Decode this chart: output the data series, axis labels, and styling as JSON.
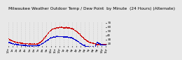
{
  "title": "Milwaukee Weather Outdoor Temp / Dew Point  by Minute  (24 Hours) (Alternate)",
  "bg_color": "#e8e8e8",
  "plot_bg_color": "#e8e8e8",
  "grid_color": "#aaaaaa",
  "temp_color": "#cc0000",
  "dew_color": "#0000cc",
  "ylim": [
    14,
    72
  ],
  "yticks": [
    20,
    30,
    40,
    50,
    60,
    70
  ],
  "ytick_labels": [
    "20",
    "30",
    "40",
    "50",
    "60",
    "70"
  ],
  "temp_values": [
    30,
    29,
    28,
    27,
    27,
    26,
    25,
    25,
    24,
    24,
    23,
    23,
    22,
    22,
    22,
    21,
    21,
    21,
    20,
    20,
    20,
    20,
    19,
    19,
    19,
    19,
    19,
    19,
    19,
    18,
    18,
    18,
    18,
    18,
    18,
    18,
    18,
    18,
    18,
    18,
    18,
    19,
    19,
    20,
    20,
    21,
    22,
    23,
    24,
    26,
    28,
    30,
    32,
    34,
    36,
    38,
    40,
    42,
    44,
    46,
    48,
    50,
    51,
    52,
    53,
    54,
    55,
    55,
    56,
    56,
    57,
    57,
    57,
    57,
    58,
    58,
    58,
    58,
    58,
    58,
    57,
    57,
    57,
    57,
    57,
    57,
    57,
    57,
    57,
    56,
    56,
    56,
    55,
    55,
    54,
    53,
    52,
    51,
    50,
    49,
    48,
    46,
    45,
    43,
    42,
    40,
    38,
    37,
    35,
    34,
    32,
    30,
    29,
    28,
    27,
    26,
    25,
    24,
    23,
    22,
    22,
    21,
    21,
    20,
    20,
    19,
    19,
    19,
    18,
    18,
    18,
    17,
    17,
    17,
    17,
    17,
    17,
    17,
    17,
    17,
    17,
    17,
    17,
    17
  ],
  "dew_values": [
    22,
    21,
    21,
    20,
    20,
    19,
    19,
    19,
    18,
    18,
    18,
    17,
    17,
    17,
    17,
    16,
    16,
    16,
    16,
    16,
    15,
    15,
    15,
    15,
    15,
    15,
    15,
    14,
    14,
    14,
    14,
    14,
    14,
    14,
    14,
    14,
    14,
    14,
    14,
    14,
    14,
    14,
    15,
    15,
    15,
    16,
    16,
    17,
    18,
    19,
    20,
    21,
    22,
    23,
    25,
    26,
    27,
    28,
    29,
    30,
    31,
    32,
    33,
    33,
    34,
    34,
    35,
    35,
    35,
    35,
    36,
    36,
    36,
    36,
    36,
    36,
    36,
    36,
    36,
    36,
    36,
    35,
    35,
    35,
    35,
    35,
    35,
    34,
    34,
    34,
    34,
    33,
    33,
    33,
    32,
    31,
    30,
    29,
    28,
    27,
    26,
    25,
    24,
    22,
    21,
    20,
    19,
    18,
    17,
    16,
    15,
    15,
    14,
    13,
    13,
    12,
    12,
    12,
    11,
    11,
    11,
    11,
    11,
    11,
    11,
    11,
    11,
    11,
    16,
    20,
    22,
    21,
    20,
    19,
    18,
    17,
    16,
    16,
    16,
    16,
    16,
    16,
    16,
    16
  ],
  "xtick_labels": [
    "12a",
    "1a",
    "2a",
    "3a",
    "4a",
    "5a",
    "6a",
    "7a",
    "8a",
    "9a",
    "10a",
    "11a",
    "12p",
    "1p",
    "2p",
    "3p",
    "4p",
    "5p",
    "6p",
    "7p",
    "8p",
    "9p",
    "10p",
    "11p"
  ],
  "title_fontsize": 4.2,
  "tick_fontsize": 3.0,
  "marker_size": 0.8,
  "dot_skip": 3
}
